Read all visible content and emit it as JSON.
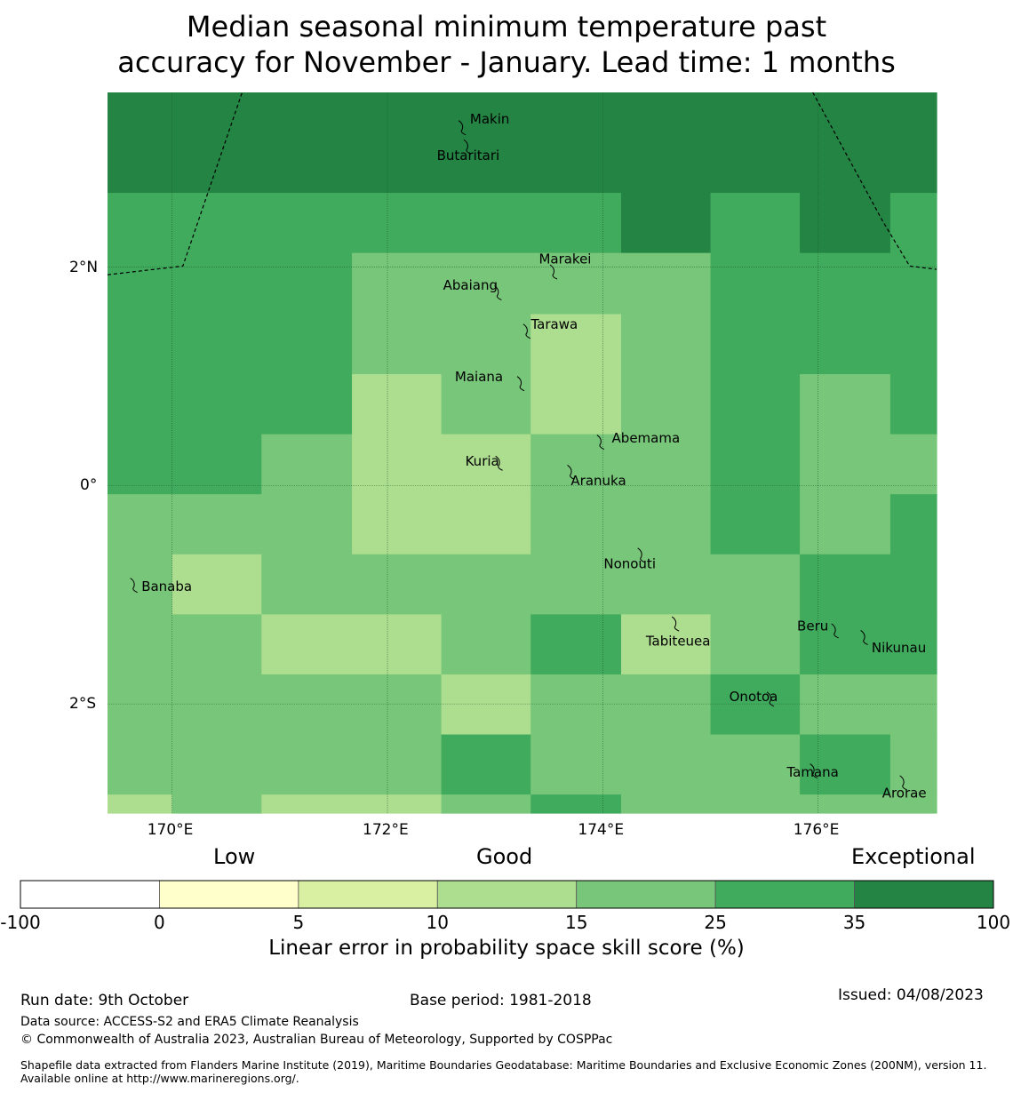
{
  "title_line1": "Median seasonal minimum temperature past",
  "title_line2": "accuracy for November - January. Lead time: 1 months",
  "map": {
    "lon_range": [
      169.4,
      177.1
    ],
    "lat_range": [
      -3.0,
      3.6
    ],
    "lon_ticks": [
      170,
      172,
      174,
      176
    ],
    "lat_ticks": [
      2,
      0,
      -2
    ],
    "lon_tick_labels": [
      "170°E",
      "172°E",
      "174°E",
      "176°E"
    ],
    "lat_tick_labels": [
      "2°N",
      "0°",
      "2°S"
    ],
    "grid_lon_edges": [
      169.4,
      170.0,
      170.83,
      171.67,
      172.5,
      173.33,
      174.17,
      175.0,
      175.83,
      176.67,
      177.1
    ],
    "grid_lat_edges": [
      3.6,
      2.68,
      2.13,
      1.57,
      1.02,
      0.47,
      -0.08,
      -0.63,
      -1.18,
      -1.73,
      -2.28,
      -2.83,
      -3.0
    ],
    "cell_classes": [
      [
        6,
        6,
        6,
        6,
        6,
        6,
        6,
        6,
        6,
        6
      ],
      [
        5,
        5,
        5,
        5,
        5,
        5,
        6,
        5,
        6,
        5
      ],
      [
        5,
        5,
        5,
        4,
        4,
        4,
        4,
        5,
        5,
        5
      ],
      [
        5,
        5,
        5,
        4,
        4,
        3,
        4,
        5,
        5,
        5
      ],
      [
        5,
        5,
        5,
        3,
        4,
        3,
        4,
        5,
        4,
        5
      ],
      [
        5,
        5,
        4,
        3,
        3,
        4,
        4,
        5,
        4,
        4
      ],
      [
        4,
        4,
        4,
        3,
        3,
        4,
        4,
        5,
        4,
        5
      ],
      [
        4,
        3,
        4,
        4,
        4,
        4,
        4,
        4,
        5,
        5
      ],
      [
        4,
        4,
        3,
        3,
        4,
        5,
        3,
        4,
        5,
        5
      ],
      [
        4,
        4,
        4,
        4,
        3,
        4,
        4,
        5,
        4,
        4
      ],
      [
        4,
        4,
        4,
        4,
        5,
        4,
        4,
        4,
        5,
        4
      ],
      [
        3,
        4,
        3,
        3,
        4,
        5,
        4,
        4,
        4,
        4
      ]
    ],
    "islands": [
      {
        "name": "Makin",
        "lon": 172.95,
        "lat": 3.35
      },
      {
        "name": "Butaritari",
        "lon": 172.75,
        "lat": 3.02
      },
      {
        "name": "Marakei",
        "lon": 173.65,
        "lat": 2.07
      },
      {
        "name": "Abaiang",
        "lon": 172.77,
        "lat": 1.83
      },
      {
        "name": "Tarawa",
        "lon": 173.55,
        "lat": 1.47
      },
      {
        "name": "Maiana",
        "lon": 172.85,
        "lat": 0.99
      },
      {
        "name": "Abemama",
        "lon": 174.4,
        "lat": 0.43
      },
      {
        "name": "Kuria",
        "lon": 172.88,
        "lat": 0.22
      },
      {
        "name": "Aranuka",
        "lon": 173.96,
        "lat": 0.04
      },
      {
        "name": "Nonouti",
        "lon": 174.25,
        "lat": -0.72
      },
      {
        "name": "Banaba",
        "lon": 169.95,
        "lat": -0.93
      },
      {
        "name": "Beru",
        "lon": 175.95,
        "lat": -1.29
      },
      {
        "name": "Tabiteuea",
        "lon": 174.7,
        "lat": -1.43
      },
      {
        "name": "Nikunau",
        "lon": 176.75,
        "lat": -1.49
      },
      {
        "name": "Onotoa",
        "lon": 175.4,
        "lat": -1.94
      },
      {
        "name": "Tamana",
        "lon": 175.95,
        "lat": -2.63
      },
      {
        "name": "Arorae",
        "lon": 176.8,
        "lat": -2.82
      }
    ],
    "eez_lines": [
      [
        [
          169.4,
          1.93
        ],
        [
          170.1,
          2.01
        ],
        [
          170.65,
          3.6
        ]
      ],
      [
        [
          175.95,
          3.6
        ],
        [
          176.6,
          2.42
        ],
        [
          176.85,
          2.01
        ],
        [
          177.1,
          1.98
        ]
      ]
    ]
  },
  "colorbar": {
    "category_labels": [
      "Low",
      "Good",
      "Exceptional"
    ],
    "tick_labels": [
      "-100",
      "0",
      "5",
      "10",
      "15",
      "25",
      "35",
      "100"
    ],
    "colors": [
      "#ffffff",
      "#ffffcc",
      "#d9f0a3",
      "#addd8e",
      "#78c679",
      "#41ab5d",
      "#238443"
    ],
    "label": "Linear error in probability space skill score (%)"
  },
  "footer": {
    "run_date": "Run date: 9th October",
    "base_period": "Base period: 1981-2018",
    "issued": "Issued: 04/08/2023",
    "data_source": "Data source: ACCESS-S2 and ERA5 Climate Reanalysis",
    "copyright": "© Commonwealth of Australia 2023, Australian Bureau of Meteorology, Supported by COSPPac",
    "shapefile": "Shapefile data extracted from Flanders Marine Institute (2019), Maritime Boundaries Geodatabase: Maritime Boundaries and Exclusive Economic Zones (200NM), version 11. Available online at http://www.marineregions.org/."
  }
}
